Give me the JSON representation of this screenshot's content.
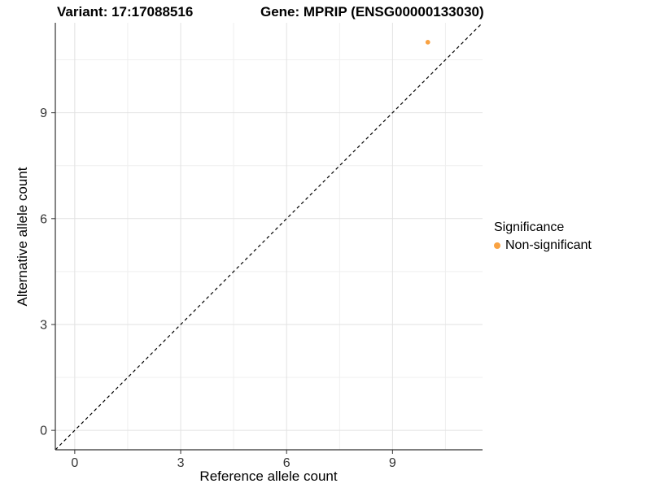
{
  "chart_data": {
    "type": "scatter",
    "titles": [
      "Variant: 17:17088516",
      "Gene: MPRIP (ENSG00000133030)"
    ],
    "xlabel": "Reference allele count",
    "ylabel": "Alternative allele count",
    "xticks": [
      0,
      3,
      6,
      9
    ],
    "yticks": [
      0,
      3,
      6,
      9
    ],
    "xticks_minor": [
      1.5,
      4.5,
      7.5,
      10.5
    ],
    "yticks_minor": [
      1.5,
      4.5,
      7.5,
      10.5
    ],
    "xlim": [
      -0.55,
      11.55
    ],
    "ylim": [
      -0.55,
      11.55
    ],
    "grid": true,
    "points": [
      {
        "x": 10,
        "y": 11,
        "series": "Non-significant",
        "color": "#F9A242"
      }
    ],
    "reference_line": {
      "type": "identity",
      "style": "dashed",
      "color": "#000000"
    },
    "legend": {
      "title": "Significance",
      "position": "right",
      "items": [
        {
          "label": "Non-significant",
          "color": "#F9A242"
        }
      ]
    },
    "colors": {
      "point": "#F9A242",
      "grid_major": "#E2E2E2",
      "grid_minor": "#EFEFEF",
      "axis_line": "#333333",
      "tick_text": "#333333",
      "dashed_line": "#000000",
      "background": "#FFFFFF"
    }
  }
}
